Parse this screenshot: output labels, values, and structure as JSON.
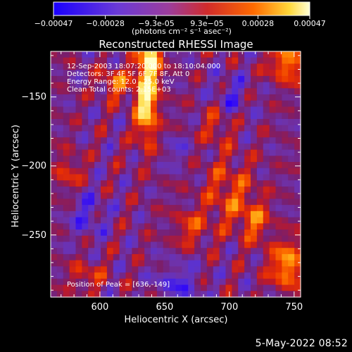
{
  "chart_data": {
    "type": "heatmap",
    "title": "Reconstructed RHESSI Image",
    "xlabel": "Heliocentric X (arcsec)",
    "ylabel": "Heliocentric Y (arcsec)",
    "xlim": [
      562,
      755
    ],
    "ylim": [
      -295,
      -117
    ],
    "xticks": [
      600,
      650,
      700,
      750
    ],
    "yticks": [
      -150,
      -200,
      -250
    ],
    "colorbar": {
      "min": -0.00047,
      "max": 0.00047,
      "ticks": [
        -0.00047,
        -0.00028,
        -9.3e-05,
        9.3e-05,
        0.00028,
        0.00047
      ],
      "tick_labels": [
        "-0.00047",
        "-0.00028",
        "-9.3e-05",
        "9.3e-05",
        "0.00028",
        "0.00047"
      ],
      "units_label": "(photons cm⁻² s⁻¹ asec⁻²)"
    },
    "info_lines": [
      "12-Sep-2003 18:07:20.000 to 18:10:04.000",
      "Detectors: 3F 4F 5F 6F 7F 8F, Att 0",
      "Energy Range: 12.0 - 25.0 keV",
      "Clean    Total counts: 2.15E+03"
    ],
    "peak_label": "Position of Peak = [636,-149]",
    "peak": [
      636,
      -149
    ],
    "colortable": [
      "#2d00ff",
      "#5a3bd6",
      "#8a3ab5",
      "#c2244e",
      "#ff5a00",
      "#ffd23a",
      "#ffffc8"
    ]
  },
  "timestamp": "5-May-2022 08:52"
}
